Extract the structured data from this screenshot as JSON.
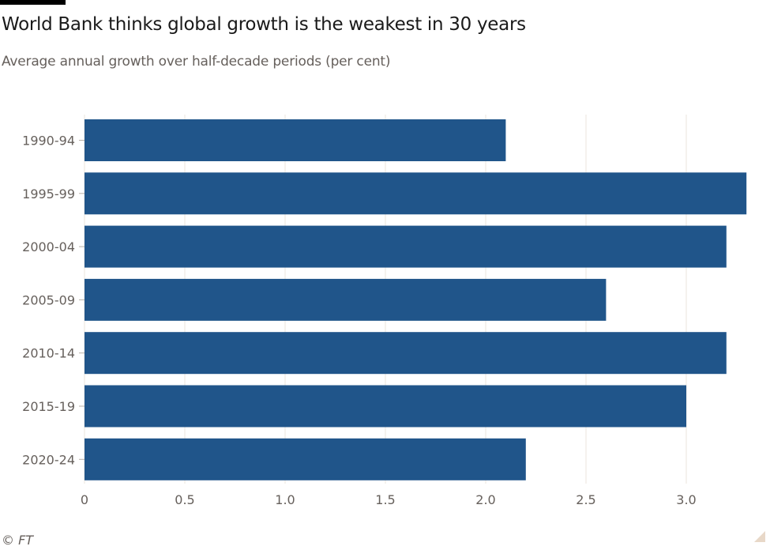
{
  "header": {
    "title": "World Bank thinks global growth is the weakest in 30 years",
    "subtitle": "Average annual growth over half-decade periods (per cent)"
  },
  "footer": {
    "source": "© FT"
  },
  "chart_data": {
    "type": "bar",
    "orientation": "horizontal",
    "title": "World Bank thinks global growth is the weakest in 30 years",
    "subtitle": "Average annual growth over half-decade periods (per cent)",
    "categories": [
      "1990-94",
      "1995-99",
      "2000-04",
      "2005-09",
      "2010-14",
      "2015-19",
      "2020-24"
    ],
    "values": [
      2.1,
      3.3,
      3.2,
      2.6,
      3.2,
      3.0,
      2.2
    ],
    "xlim": [
      0,
      3.35
    ],
    "xticks": [
      0,
      0.5,
      1.0,
      1.5,
      2.0,
      2.5,
      3.0
    ],
    "xtick_labels": [
      "0",
      "0.5",
      "1.0",
      "1.5",
      "2.0",
      "2.5",
      "3.0"
    ],
    "xlabel": "",
    "ylabel": "",
    "grid": "vertical",
    "colors": {
      "bar": "#20558a",
      "grid": "#ebe4dc",
      "text": "#66605c"
    }
  }
}
